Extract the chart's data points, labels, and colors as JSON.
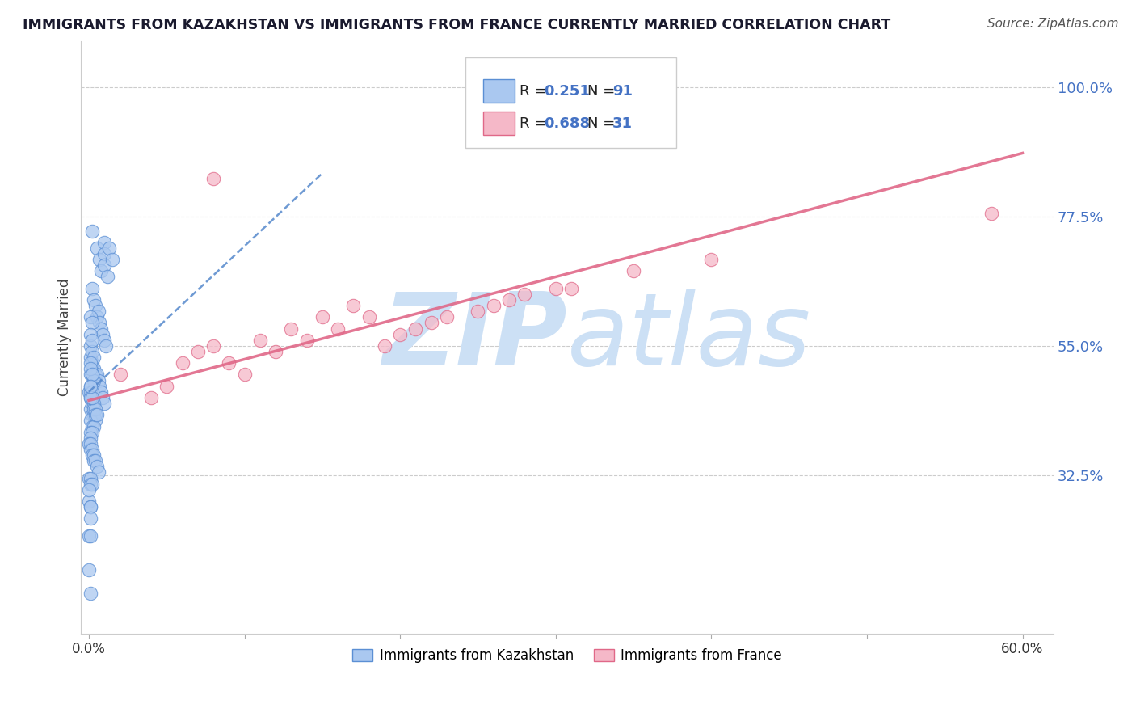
{
  "title": "IMMIGRANTS FROM KAZAKHSTAN VS IMMIGRANTS FROM FRANCE CURRENTLY MARRIED CORRELATION CHART",
  "source": "Source: ZipAtlas.com",
  "ylabel": "Currently Married",
  "xlim": [
    -0.005,
    0.62
  ],
  "ylim": [
    0.05,
    1.08
  ],
  "xtick_positions": [
    0.0,
    0.1,
    0.2,
    0.3,
    0.4,
    0.5,
    0.6
  ],
  "xticklabels": [
    "0.0%",
    "",
    "",
    "",
    "",
    "",
    "60.0%"
  ],
  "ytick_positions": [
    0.325,
    0.55,
    0.775,
    1.0
  ],
  "yticklabels": [
    "32.5%",
    "55.0%",
    "77.5%",
    "100.0%"
  ],
  "R_kaz": 0.251,
  "N_kaz": 91,
  "R_fra": 0.688,
  "N_fra": 31,
  "color_kaz_fill": "#aac8f0",
  "color_kaz_edge": "#5b8fd4",
  "color_kaz_line": "#5588cc",
  "color_fra_fill": "#f5b8c8",
  "color_fra_edge": "#e06888",
  "color_fra_line": "#e06888",
  "color_ytick": "#4472c4",
  "watermark_zip": "ZIP",
  "watermark_atlas": "atlas",
  "watermark_color": "#cce0f5",
  "legend_label_kaz": "Immigrants from Kazakhstan",
  "legend_label_fra": "Immigrants from France",
  "seed": 42,
  "kaz_points_x": [
    0.002,
    0.005,
    0.007,
    0.008,
    0.01,
    0.01,
    0.01,
    0.012,
    0.013,
    0.015,
    0.002,
    0.003,
    0.004,
    0.005,
    0.006,
    0.007,
    0.008,
    0.009,
    0.01,
    0.011,
    0.001,
    0.002,
    0.003,
    0.004,
    0.005,
    0.006,
    0.007,
    0.008,
    0.009,
    0.01,
    0.001,
    0.002,
    0.003,
    0.004,
    0.001,
    0.002,
    0.003,
    0.001,
    0.002,
    0.001,
    0.0,
    0.001,
    0.001,
    0.002,
    0.002,
    0.003,
    0.003,
    0.004,
    0.004,
    0.005,
    0.0,
    0.001,
    0.001,
    0.002,
    0.002,
    0.003,
    0.003,
    0.004,
    0.005,
    0.006,
    0.001,
    0.002,
    0.003,
    0.001,
    0.002,
    0.003,
    0.001,
    0.002,
    0.001,
    0.002,
    0.0,
    0.001,
    0.001,
    0.002,
    0.0,
    0.001,
    0.001,
    0.0,
    0.001,
    0.0,
    0.001,
    0.002,
    0.001,
    0.002,
    0.001,
    0.001,
    0.002,
    0.001,
    0.0,
    0.001,
    0.001
  ],
  "kaz_points_y": [
    0.75,
    0.72,
    0.7,
    0.68,
    0.73,
    0.71,
    0.69,
    0.67,
    0.72,
    0.7,
    0.65,
    0.63,
    0.62,
    0.6,
    0.61,
    0.59,
    0.58,
    0.57,
    0.56,
    0.55,
    0.53,
    0.52,
    0.51,
    0.5,
    0.5,
    0.49,
    0.48,
    0.47,
    0.46,
    0.45,
    0.44,
    0.43,
    0.43,
    0.42,
    0.42,
    0.41,
    0.41,
    0.4,
    0.4,
    0.39,
    0.47,
    0.47,
    0.46,
    0.46,
    0.45,
    0.45,
    0.44,
    0.44,
    0.43,
    0.43,
    0.38,
    0.37,
    0.38,
    0.37,
    0.36,
    0.36,
    0.35,
    0.35,
    0.34,
    0.33,
    0.55,
    0.54,
    0.53,
    0.5,
    0.5,
    0.49,
    0.48,
    0.47,
    0.46,
    0.46,
    0.32,
    0.32,
    0.31,
    0.31,
    0.28,
    0.27,
    0.27,
    0.22,
    0.22,
    0.16,
    0.6,
    0.59,
    0.57,
    0.56,
    0.52,
    0.51,
    0.5,
    0.48,
    0.3,
    0.25,
    0.12
  ],
  "fra_points_x": [
    0.02,
    0.05,
    0.07,
    0.08,
    0.09,
    0.1,
    0.11,
    0.13,
    0.15,
    0.17,
    0.19,
    0.2,
    0.22,
    0.25,
    0.27,
    0.3,
    0.04,
    0.06,
    0.12,
    0.14,
    0.16,
    0.18,
    0.21,
    0.23,
    0.26,
    0.28,
    0.31,
    0.35,
    0.4,
    0.58,
    0.08
  ],
  "fra_points_y": [
    0.5,
    0.48,
    0.54,
    0.55,
    0.52,
    0.5,
    0.56,
    0.58,
    0.6,
    0.62,
    0.55,
    0.57,
    0.59,
    0.61,
    0.63,
    0.65,
    0.46,
    0.52,
    0.54,
    0.56,
    0.58,
    0.6,
    0.58,
    0.6,
    0.62,
    0.64,
    0.65,
    0.68,
    0.7,
    0.78,
    0.84
  ],
  "kaz_line_x": [
    0.0,
    0.15
  ],
  "kaz_line_y": [
    0.47,
    0.85
  ],
  "fra_line_x": [
    0.0,
    0.6
  ],
  "fra_line_y": [
    0.455,
    0.885
  ]
}
